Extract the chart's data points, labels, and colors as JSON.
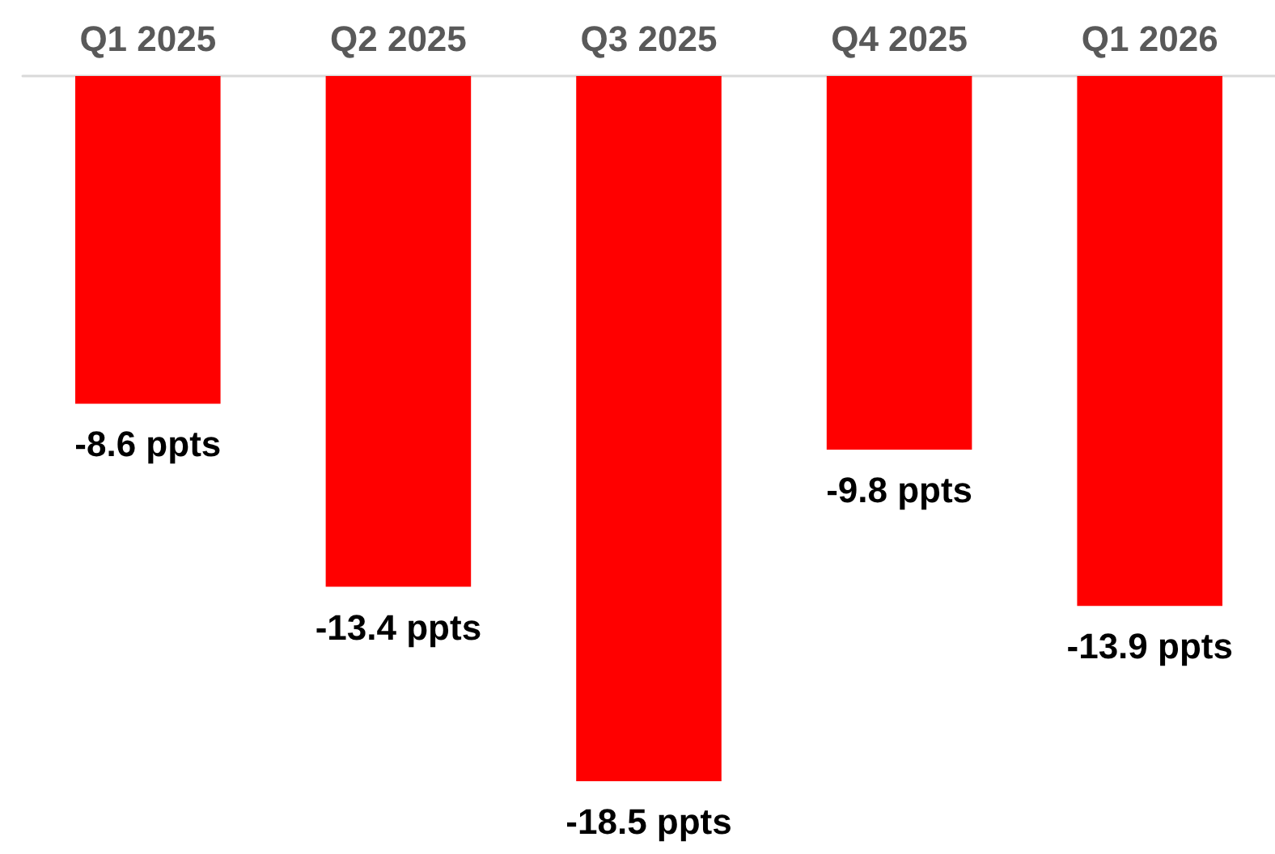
{
  "chart_data": {
    "type": "bar",
    "categories": [
      "Q1 2025",
      "Q2 2025",
      "Q3 2025",
      "Q4 2025",
      "Q1 2026"
    ],
    "values": [
      -8.6,
      -13.4,
      -18.5,
      -9.8,
      -13.9
    ],
    "color": "#ff0000",
    "value_labels": [
      "-8.6 ppts",
      "-13.4 ppts",
      "-18.5 ppts",
      "-9.8 ppts",
      "-13.9 ppts"
    ]
  }
}
